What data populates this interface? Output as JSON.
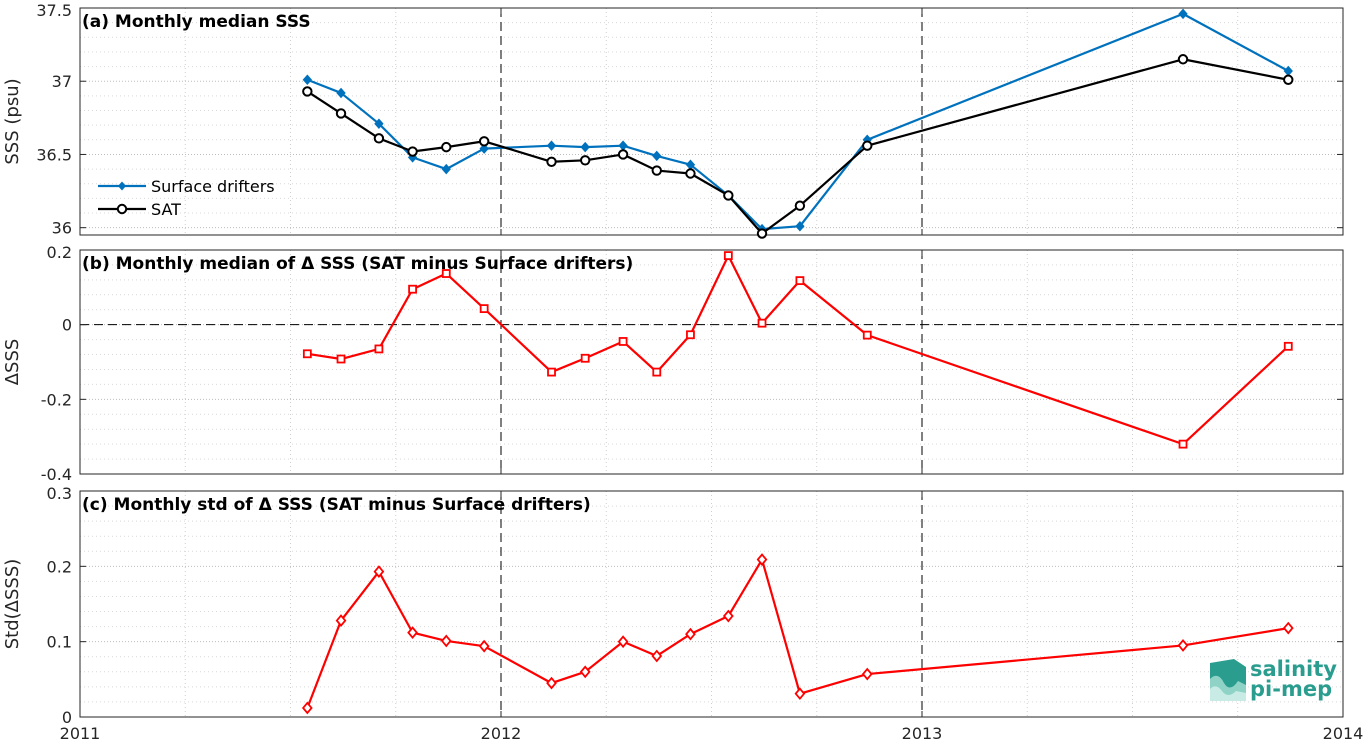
{
  "colors": {
    "drifters": "#0072BD",
    "sat": "#000000",
    "delta": "#FF0000",
    "logo": "#2a9d8f"
  },
  "logo": {
    "line1": "salinity",
    "line2": "pi-mep"
  },
  "chart_data": [
    {
      "type": "line",
      "title": "(a) Monthly median SSS",
      "ylabel": "SSS (psu)",
      "ylim": [
        35.95,
        37.5
      ],
      "yticks": [
        "36",
        "36.5",
        "37",
        "37.5"
      ],
      "xlim": [
        2011,
        2014
      ],
      "grid": true,
      "legend_position": "left",
      "x": [
        2011.54,
        2011.62,
        2011.71,
        2011.79,
        2011.87,
        2011.96,
        2012.12,
        2012.2,
        2012.29,
        2012.37,
        2012.45,
        2012.54,
        2012.62,
        2012.71,
        2012.87,
        2013.62,
        2013.87
      ],
      "series": [
        {
          "name": "Surface drifters",
          "marker": "diamond",
          "values": [
            37.01,
            36.92,
            36.71,
            36.48,
            36.4,
            36.54,
            36.56,
            36.55,
            36.56,
            36.49,
            36.43,
            36.22,
            35.99,
            36.01,
            36.6,
            37.46,
            37.07
          ]
        },
        {
          "name": "SAT",
          "marker": "circle",
          "values": [
            36.93,
            36.78,
            36.61,
            36.52,
            36.55,
            36.59,
            36.45,
            36.46,
            36.5,
            36.39,
            36.37,
            36.22,
            35.96,
            36.15,
            36.56,
            37.15,
            37.01
          ]
        }
      ]
    },
    {
      "type": "line",
      "title": "(b) Monthly median of Δ SSS (SAT minus Surface drifters)",
      "ylabel": "ΔSSS",
      "ylim": [
        -0.4,
        0.2
      ],
      "yticks": [
        "-0.4",
        "-0.2",
        "0",
        "0.2"
      ],
      "xlim": [
        2011,
        2014
      ],
      "grid": true,
      "reference_line": 0,
      "x": [
        2011.54,
        2011.62,
        2011.71,
        2011.79,
        2011.87,
        2011.96,
        2012.12,
        2012.2,
        2012.29,
        2012.37,
        2012.45,
        2012.54,
        2012.62,
        2012.71,
        2012.87,
        2013.62,
        2013.87
      ],
      "series": [
        {
          "marker": "square",
          "values": [
            -0.078,
            -0.092,
            -0.065,
            0.095,
            0.137,
            0.043,
            -0.127,
            -0.09,
            -0.045,
            -0.127,
            -0.027,
            0.185,
            0.004,
            0.118,
            -0.028,
            -0.32,
            -0.058
          ]
        }
      ]
    },
    {
      "type": "line",
      "title": "(c) Monthly std of Δ SSS (SAT minus Surface drifters)",
      "ylabel": "Std(ΔSSS)",
      "ylim": [
        0,
        0.3
      ],
      "yticks": [
        "0",
        "0.1",
        "0.2",
        "0.3"
      ],
      "xlim": [
        2011,
        2014
      ],
      "xticks": [
        "2011",
        "2012",
        "2013",
        "2014"
      ],
      "grid": true,
      "x": [
        2011.54,
        2011.62,
        2011.71,
        2011.79,
        2011.87,
        2011.96,
        2012.12,
        2012.2,
        2012.29,
        2012.37,
        2012.45,
        2012.54,
        2012.62,
        2012.71,
        2012.87,
        2013.62,
        2013.87
      ],
      "series": [
        {
          "marker": "diamond",
          "values": [
            0.012,
            0.128,
            0.193,
            0.112,
            0.101,
            0.094,
            0.045,
            0.06,
            0.1,
            0.081,
            0.11,
            0.134,
            0.209,
            0.031,
            0.057,
            0.095,
            0.118
          ]
        }
      ]
    }
  ]
}
